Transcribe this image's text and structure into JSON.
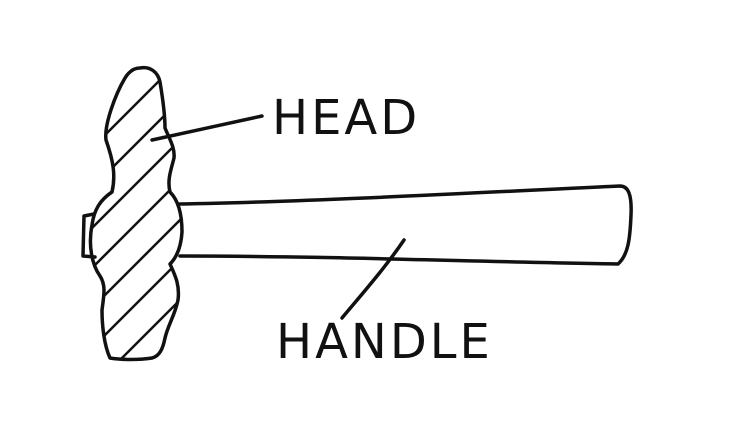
{
  "labels": {
    "head": "HEAD",
    "handle": "HANDLE"
  },
  "colors": {
    "ink": "#111111",
    "paper": "#ffffff"
  }
}
